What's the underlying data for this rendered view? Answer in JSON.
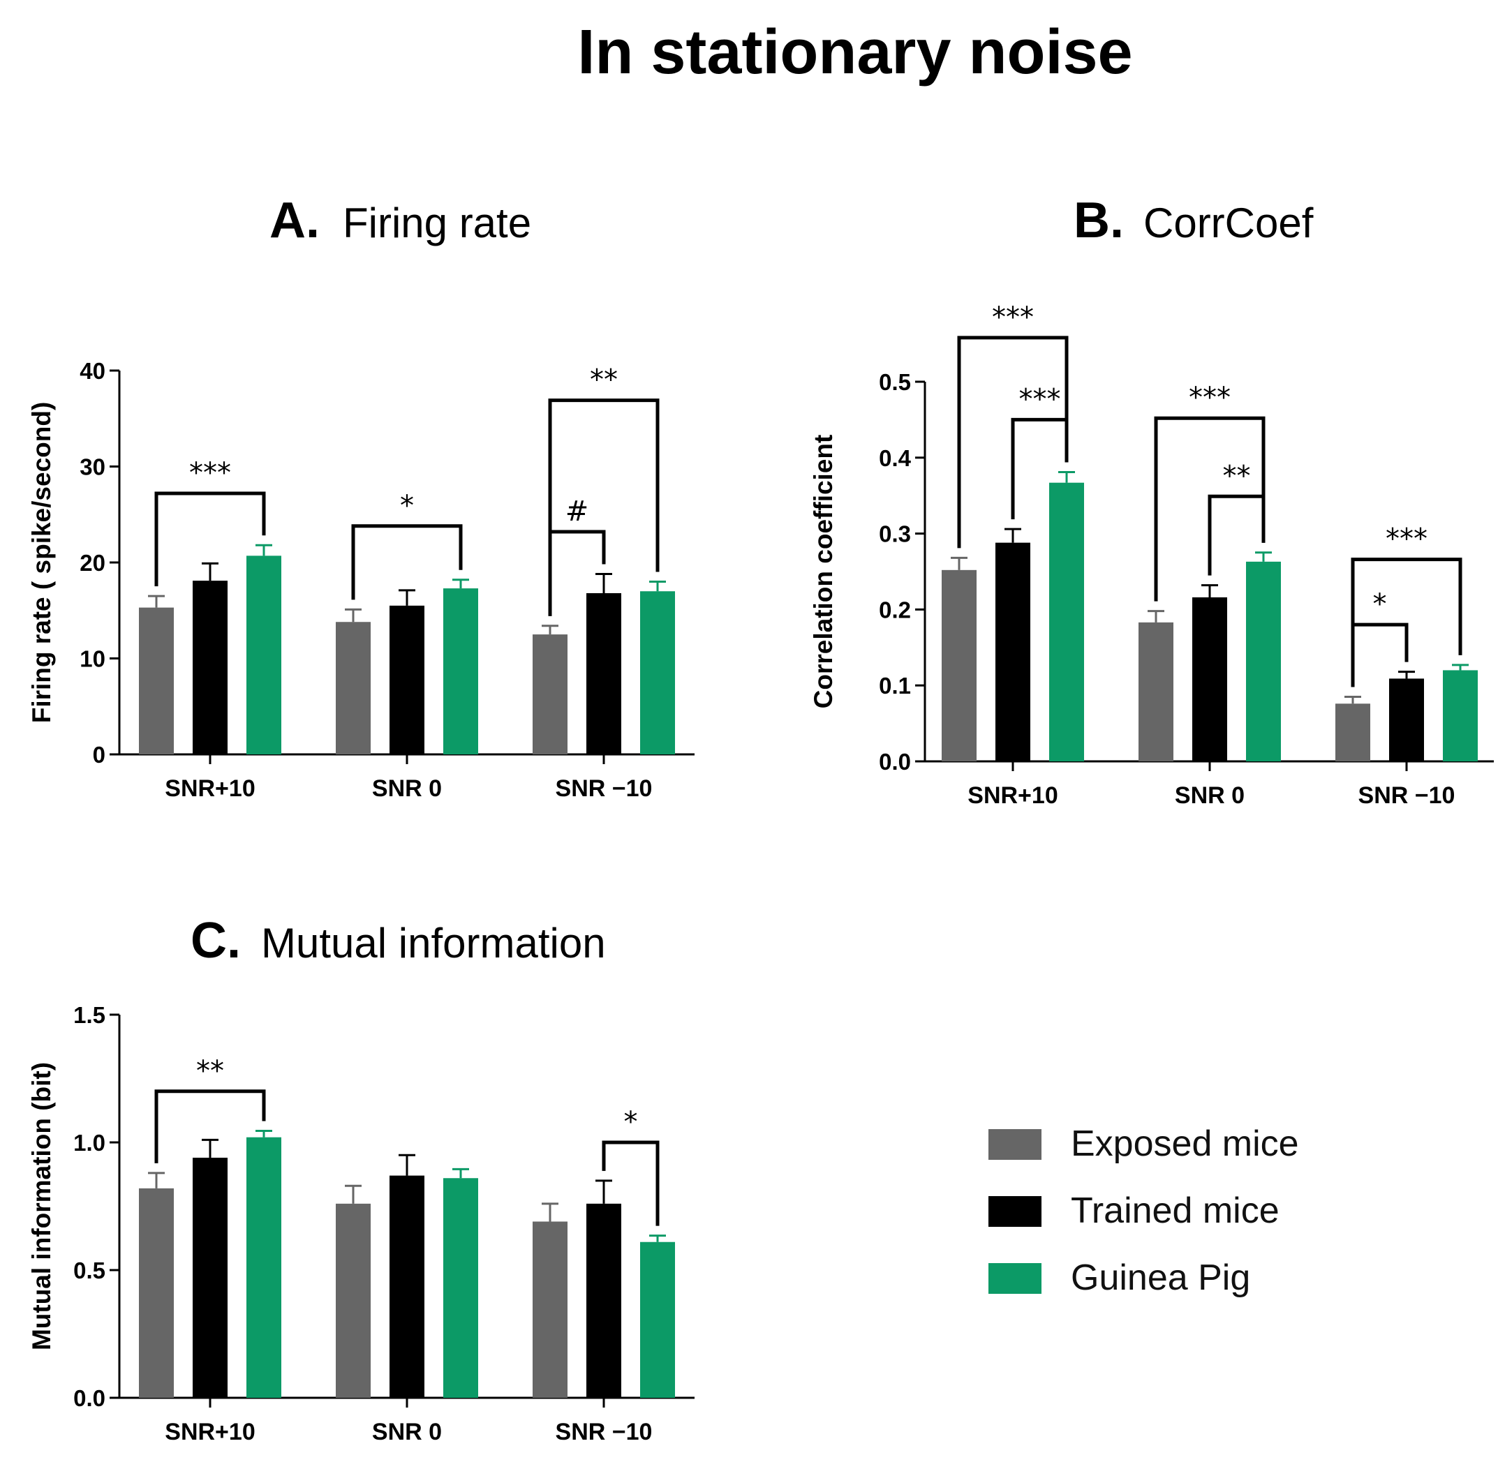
{
  "title": "In stationary noise",
  "colors": {
    "exposed": "#666666",
    "trained": "#000000",
    "guinea": "#0c9a66"
  },
  "legend": [
    {
      "name": "Exposed mice",
      "color_key": "exposed"
    },
    {
      "name": "Trained mice",
      "color_key": "trained"
    },
    {
      "name": "Guinea Pig",
      "color_key": "guinea"
    }
  ],
  "chart_data": [
    {
      "type": "bar",
      "panel_letter": "A.",
      "panel_name": "Firing rate",
      "ylabel": "Firing rate ( spike/second)",
      "xlabel": "",
      "ylim": [
        0,
        40
      ],
      "yticks": [
        0,
        10,
        20,
        30,
        40
      ],
      "ytick_labels": [
        "0",
        "10",
        "20",
        "30",
        "40"
      ],
      "categories": [
        "SNR+10",
        "SNR 0",
        "SNR −10"
      ],
      "series": [
        {
          "name": "Exposed mice",
          "values": [
            15.3,
            13.8,
            12.5
          ],
          "errors": [
            1.2,
            1.3,
            0.9
          ]
        },
        {
          "name": "Trained mice",
          "values": [
            18.1,
            15.5,
            16.8
          ],
          "errors": [
            1.8,
            1.6,
            2.0
          ]
        },
        {
          "name": "Guinea Pig",
          "values": [
            20.7,
            17.3,
            17.0
          ],
          "errors": [
            1.1,
            0.9,
            1.0
          ]
        }
      ],
      "significance": [
        {
          "category": 0,
          "from_series": 0,
          "to_series": 2,
          "label": "***",
          "level": 27.2
        },
        {
          "category": 1,
          "from_series": 0,
          "to_series": 2,
          "label": "*",
          "level": 23.8
        },
        {
          "category": 2,
          "from_series": 0,
          "to_series": 1,
          "label": "#",
          "level": 23.2
        },
        {
          "category": 2,
          "from_series": 0,
          "to_series": 2,
          "label": "**",
          "level": 36.9
        }
      ]
    },
    {
      "type": "bar",
      "panel_letter": "B.",
      "panel_name": "CorrCoef",
      "ylabel": "Correlation coefficient",
      "xlabel": "",
      "ylim": [
        0,
        0.5
      ],
      "yticks": [
        0,
        0.1,
        0.2,
        0.3,
        0.4,
        0.5
      ],
      "ytick_labels": [
        "0.0",
        "0.1",
        "0.2",
        "0.3",
        "0.4",
        "0.5"
      ],
      "categories": [
        "SNR+10",
        "SNR 0",
        "SNR −10"
      ],
      "series": [
        {
          "name": "Exposed mice",
          "values": [
            0.252,
            0.183,
            0.076
          ],
          "errors": [
            0.016,
            0.015,
            0.009
          ]
        },
        {
          "name": "Trained mice",
          "values": [
            0.288,
            0.216,
            0.109
          ],
          "errors": [
            0.018,
            0.016,
            0.009
          ]
        },
        {
          "name": "Guinea Pig",
          "values": [
            0.367,
            0.263,
            0.12
          ],
          "errors": [
            0.014,
            0.012,
            0.007
          ]
        }
      ],
      "significance": [
        {
          "category": 0,
          "from_series": 0,
          "to_series": 2,
          "label": "***",
          "level": 0.558
        },
        {
          "category": 0,
          "from_series": 1,
          "to_series": 2,
          "label": "***",
          "level": 0.45
        },
        {
          "category": 1,
          "from_series": 0,
          "to_series": 2,
          "label": "***",
          "level": 0.452
        },
        {
          "category": 1,
          "from_series": 1,
          "to_series": 2,
          "label": "**",
          "level": 0.349
        },
        {
          "category": 2,
          "from_series": 0,
          "to_series": 1,
          "label": "*",
          "level": 0.18
        },
        {
          "category": 2,
          "from_series": 0,
          "to_series": 2,
          "label": "***",
          "level": 0.266
        }
      ]
    },
    {
      "type": "bar",
      "panel_letter": "C.",
      "panel_name": "Mutual information",
      "ylabel": "Mutual information (bit)",
      "xlabel": "",
      "ylim": [
        0,
        1.5
      ],
      "yticks": [
        0,
        0.5,
        1.0,
        1.5
      ],
      "ytick_labels": [
        "0.0",
        "0.5",
        "1.0",
        "1.5"
      ],
      "categories": [
        "SNR+10",
        "SNR 0",
        "SNR −10"
      ],
      "series": [
        {
          "name": "Exposed mice",
          "values": [
            0.82,
            0.76,
            0.69
          ],
          "errors": [
            0.06,
            0.07,
            0.07
          ]
        },
        {
          "name": "Trained mice",
          "values": [
            0.94,
            0.87,
            0.76
          ],
          "errors": [
            0.07,
            0.08,
            0.09
          ]
        },
        {
          "name": "Guinea Pig",
          "values": [
            1.02,
            0.86,
            0.61
          ],
          "errors": [
            0.025,
            0.035,
            0.025
          ]
        }
      ],
      "significance": [
        {
          "category": 0,
          "from_series": 0,
          "to_series": 2,
          "label": "**",
          "level": 1.2
        },
        {
          "category": 2,
          "from_series": 1,
          "to_series": 2,
          "label": "*",
          "level": 1.0
        }
      ]
    }
  ]
}
